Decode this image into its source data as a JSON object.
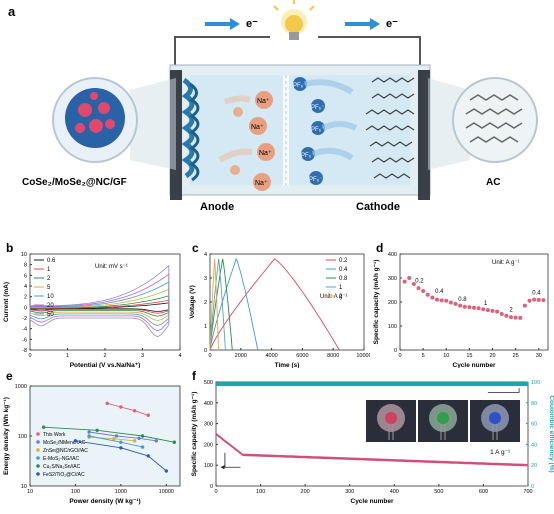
{
  "panel_labels": {
    "a": "a",
    "b": "b",
    "c": "c",
    "d": "d",
    "e": "e",
    "f": "f"
  },
  "schematic": {
    "electron_left": "e⁻",
    "electron_right": "e⁻",
    "anode_label": "Anode",
    "cathode_label": "Cathode",
    "anode_material": "CoSe₂/MoSe₂@NC/GF",
    "cathode_material": "AC",
    "na_ion": "Na⁺",
    "pf6_ion": "PF₆⁻",
    "colors": {
      "ion": "#e8a080",
      "electrolyte": "#cfe7f2",
      "anion": "#2f6fb0",
      "accent": "#18a8b0"
    }
  },
  "chart_data": [
    {
      "id": "b",
      "type": "line",
      "title": "",
      "xlabel": "Potential (V vs.Na/Na⁺)",
      "ylabel": "Current (mA)",
      "xlim": [
        0,
        4
      ],
      "ylim": [
        -8,
        10
      ],
      "xticks": [
        0,
        1,
        2,
        3,
        4
      ],
      "yticks": [
        -8,
        -6,
        -4,
        -2,
        0,
        2,
        4,
        6,
        8,
        10
      ],
      "unit_text": "Unit: mV s⁻¹",
      "legend_position": "top-left",
      "series": [
        {
          "name": "0.6",
          "color": "#1a1a1a",
          "scale": 0.14
        },
        {
          "name": "1",
          "color": "#e0485a",
          "scale": 0.2
        },
        {
          "name": "2",
          "color": "#2c8c4a",
          "scale": 0.3
        },
        {
          "name": "5",
          "color": "#e6a83c",
          "scale": 0.45
        },
        {
          "name": "10",
          "color": "#3fa0c8",
          "scale": 0.62
        },
        {
          "name": "20",
          "color": "#c660c8",
          "scale": 0.8
        },
        {
          "name": "50",
          "color": "#8c8ccc",
          "scale": 1.0
        }
      ]
    },
    {
      "id": "c",
      "type": "line",
      "title": "",
      "xlabel": "Time (s)",
      "ylabel": "Voltage (V)",
      "xlim": [
        0,
        10000
      ],
      "ylim": [
        0,
        4
      ],
      "xticks": [
        0,
        2000,
        4000,
        6000,
        8000,
        10000
      ],
      "yticks": [
        0,
        1,
        2,
        3,
        4
      ],
      "unit_text": "Unit: A g⁻¹",
      "legend_position": "top-right",
      "vmax": 3.8,
      "series": [
        {
          "name": "0.2",
          "color": "#e0485a",
          "charge_end": 4200,
          "discharge_end": 8400
        },
        {
          "name": "0.4",
          "color": "#3fa0c8",
          "charge_end": 1700,
          "discharge_end": 3100
        },
        {
          "name": "0.8",
          "color": "#2c8c4a",
          "charge_end": 820,
          "discharge_end": 1450
        },
        {
          "name": "1",
          "color": "#5aa0d0",
          "charge_end": 560,
          "discharge_end": 1000
        },
        {
          "name": "2",
          "color": "#e6a83c",
          "charge_end": 300,
          "discharge_end": 560
        }
      ]
    },
    {
      "id": "d",
      "type": "scatter",
      "title": "",
      "xlabel": "Cycle number",
      "ylabel": "Specific capacity (mAh g⁻¹)",
      "xlim": [
        0,
        32
      ],
      "ylim": [
        0,
        400
      ],
      "xticks": [
        0,
        5,
        10,
        15,
        20,
        25,
        30
      ],
      "yticks": [
        0,
        100,
        200,
        300,
        400
      ],
      "unit_text": "Unit: A g⁻¹",
      "marker_color": "#e0607a",
      "x": [
        1,
        2,
        3,
        4,
        5,
        6,
        7,
        8,
        9,
        10,
        11,
        12,
        13,
        14,
        15,
        16,
        17,
        18,
        19,
        20,
        21,
        22,
        23,
        24,
        25,
        26,
        27,
        28,
        29,
        30,
        31
      ],
      "y": [
        285,
        300,
        275,
        258,
        246,
        230,
        218,
        210,
        207,
        205,
        198,
        192,
        185,
        180,
        178,
        176,
        174,
        170,
        166,
        163,
        160,
        150,
        142,
        137,
        135,
        134,
        185,
        205,
        210,
        209,
        208
      ],
      "annotations": [
        {
          "text": "0.2",
          "x": 4.2,
          "y": 282
        },
        {
          "text": "0.4",
          "x": 8.5,
          "y": 238
        },
        {
          "text": "0.8",
          "x": 13.5,
          "y": 205
        },
        {
          "text": "1",
          "x": 18.5,
          "y": 188
        },
        {
          "text": "2",
          "x": 24,
          "y": 160
        },
        {
          "text": "0.4",
          "x": 29.5,
          "y": 232
        }
      ]
    },
    {
      "id": "e",
      "type": "line",
      "title": "",
      "xlabel": "Power density (W kg⁻¹)",
      "ylabel": "Energy density (Wh kg⁻¹)",
      "xscale": "log",
      "yscale": "log",
      "xlim": [
        10,
        20000
      ],
      "ylim": [
        10,
        1000
      ],
      "xtick_labels": [
        "10",
        "100",
        "1000",
        "10000"
      ],
      "ytick_labels": [
        "10",
        "100",
        "1000"
      ],
      "series": [
        {
          "name": "This Work",
          "color": "#e0607a",
          "x": [
            500,
            1000,
            2000,
            4000
          ],
          "y": [
            450,
            380,
            320,
            260
          ]
        },
        {
          "name": "MoSe₂/NMene//AC",
          "color": "#6a7cd0",
          "x": [
            200,
            800,
            2500,
            6000
          ],
          "y": [
            120,
            100,
            90,
            80
          ]
        },
        {
          "name": "ZnSe@NC/rGO//AC",
          "color": "#e6a83c",
          "x": [
            200,
            700,
            2000
          ],
          "y": [
            95,
            88,
            80
          ]
        },
        {
          "name": "E-MoS₂-NG//AC",
          "color": "#3fa0c8",
          "x": [
            200,
            1000,
            3000
          ],
          "y": [
            100,
            75,
            60
          ]
        },
        {
          "name": "Cu₂S/Na₂Sn//AC",
          "color": "#2c8c4a",
          "x": [
            20,
            300,
            3000,
            15000
          ],
          "y": [
            150,
            130,
            100,
            75
          ]
        },
        {
          "name": "FeS2/TiO₂@C//AC",
          "color": "#2c5fb0",
          "x": [
            100,
            1000,
            4000,
            10000
          ],
          "y": [
            80,
            58,
            40,
            20
          ]
        }
      ]
    },
    {
      "id": "f",
      "type": "scatter",
      "title": "",
      "xlabel": "Cycle number",
      "ylabel": "Specific capacity (mAh g⁻¹)",
      "y2label": "Coulombic efficiency (%)",
      "xlim": [
        0,
        700
      ],
      "ylim": [
        0,
        500
      ],
      "y2lim": [
        0,
        100
      ],
      "xticks": [
        0,
        100,
        200,
        300,
        400,
        500,
        600,
        700
      ],
      "yticks": [
        0,
        100,
        200,
        300,
        400,
        500
      ],
      "y2ticks": [
        0,
        20,
        40,
        60,
        80,
        100
      ],
      "rate_text": "1 A g⁻¹",
      "capacity_color": "#d0507a",
      "ce_color": "#18a8b0",
      "capacity_start": 250,
      "capacity_plateau": 150,
      "capacity_end": 100,
      "ce_value": 98
    }
  ]
}
